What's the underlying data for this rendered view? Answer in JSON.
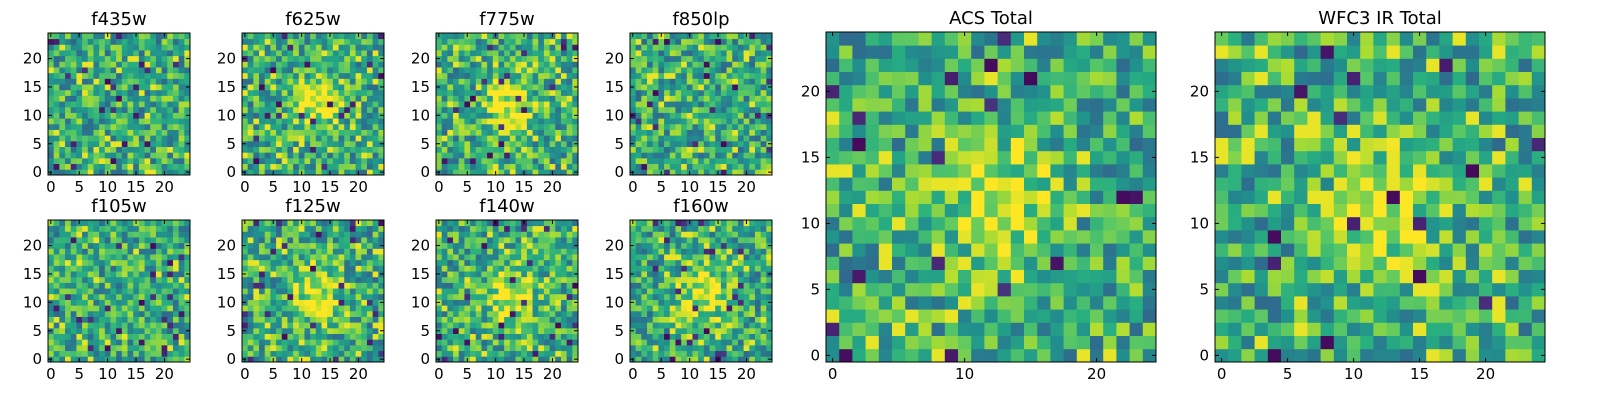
{
  "chart_data": {
    "type": "heatmap",
    "colormap": "viridis",
    "panels": [
      {
        "title": "f435w",
        "grid_size": 25,
        "xlim": [
          0,
          24
        ],
        "ylim": [
          0,
          24
        ],
        "xticks": [
          0,
          5,
          10,
          15,
          20
        ],
        "yticks": [
          0,
          5,
          10,
          15,
          20
        ],
        "central_source": false,
        "seed": 11
      },
      {
        "title": "f625w",
        "grid_size": 25,
        "xlim": [
          0,
          24
        ],
        "ylim": [
          0,
          24
        ],
        "xticks": [
          0,
          5,
          10,
          15,
          20
        ],
        "yticks": [
          0,
          5,
          10,
          15,
          20
        ],
        "central_source": true,
        "seed": 23
      },
      {
        "title": "f775w",
        "grid_size": 25,
        "xlim": [
          0,
          24
        ],
        "ylim": [
          0,
          24
        ],
        "xticks": [
          0,
          5,
          10,
          15,
          20
        ],
        "yticks": [
          0,
          5,
          10,
          15,
          20
        ],
        "central_source": true,
        "seed": 37
      },
      {
        "title": "f850lp",
        "grid_size": 25,
        "xlim": [
          0,
          24
        ],
        "ylim": [
          0,
          24
        ],
        "xticks": [
          0,
          5,
          10,
          15,
          20
        ],
        "yticks": [
          0,
          5,
          10,
          15,
          20
        ],
        "central_source": false,
        "seed": 41
      },
      {
        "title": "f105w",
        "grid_size": 25,
        "xlim": [
          0,
          24
        ],
        "ylim": [
          0,
          24
        ],
        "xticks": [
          0,
          5,
          10,
          15,
          20
        ],
        "yticks": [
          0,
          5,
          10,
          15,
          20
        ],
        "central_source": false,
        "seed": 53
      },
      {
        "title": "f125w",
        "grid_size": 25,
        "xlim": [
          0,
          24
        ],
        "ylim": [
          0,
          24
        ],
        "xticks": [
          0,
          5,
          10,
          15,
          20
        ],
        "yticks": [
          0,
          5,
          10,
          15,
          20
        ],
        "central_source": true,
        "seed": 67
      },
      {
        "title": "f140w",
        "grid_size": 25,
        "xlim": [
          0,
          24
        ],
        "ylim": [
          0,
          24
        ],
        "xticks": [
          0,
          5,
          10,
          15,
          20
        ],
        "yticks": [
          0,
          5,
          10,
          15,
          20
        ],
        "central_source": true,
        "seed": 79
      },
      {
        "title": "f160w",
        "grid_size": 25,
        "xlim": [
          0,
          24
        ],
        "ylim": [
          0,
          24
        ],
        "xticks": [
          0,
          5,
          10,
          15,
          20
        ],
        "yticks": [
          0,
          5,
          10,
          15,
          20
        ],
        "central_source": true,
        "seed": 83
      },
      {
        "title": "ACS Total",
        "grid_size": 25,
        "xlim": [
          0,
          24
        ],
        "ylim": [
          0,
          24
        ],
        "xticks": [
          0,
          10,
          20
        ],
        "yticks": [
          0,
          5,
          10,
          15,
          20
        ],
        "central_source": true,
        "seed": 97
      },
      {
        "title": "WFC3 IR Total",
        "grid_size": 25,
        "xlim": [
          0,
          24
        ],
        "ylim": [
          0,
          24
        ],
        "xticks": [
          0,
          5,
          10,
          15,
          20
        ],
        "yticks": [
          0,
          5,
          10,
          15,
          20
        ],
        "central_source": true,
        "seed": 101
      }
    ]
  }
}
